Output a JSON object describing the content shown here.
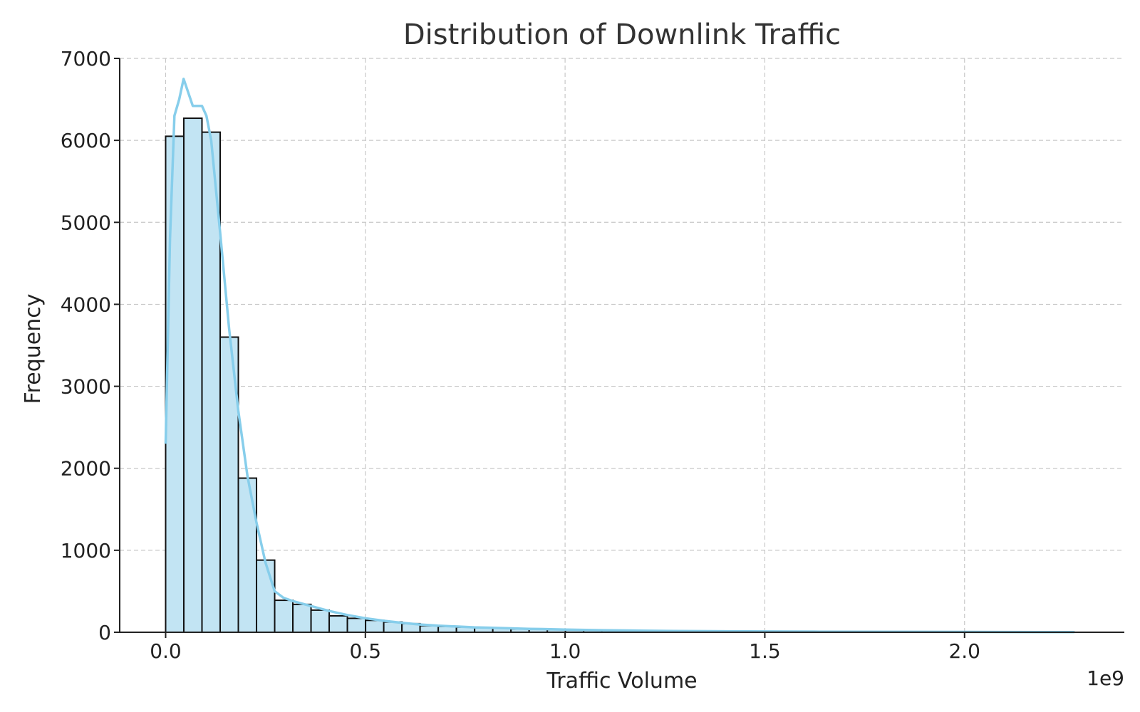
{
  "chart_data": {
    "type": "bar",
    "title": "Distribution of Downlink Traffic",
    "xlabel": "Traffic Volume",
    "ylabel": "Frequency",
    "x_offset_label": "1e9",
    "xlim": [
      -115000000.0,
      2400000000.0
    ],
    "ylim": [
      0,
      7000
    ],
    "xticks": [
      0.0,
      0.5,
      1.0,
      1.5,
      2.0
    ],
    "xtick_labels": [
      "0.0",
      "0.5",
      "1.0",
      "1.5",
      "2.0"
    ],
    "yticks": [
      0,
      1000,
      2000,
      3000,
      4000,
      5000,
      6000,
      7000
    ],
    "ytick_labels": [
      "0",
      "1000",
      "2000",
      "3000",
      "4000",
      "5000",
      "6000",
      "7000"
    ],
    "grid": true,
    "bin_start": 0,
    "bin_width": 45500000,
    "values": [
      6050,
      6270,
      6100,
      3600,
      1880,
      880,
      390,
      340,
      270,
      200,
      170,
      145,
      125,
      105,
      80,
      70,
      62,
      55,
      48,
      40,
      36,
      32,
      28,
      25,
      22,
      20,
      18,
      16,
      14,
      12,
      11,
      10,
      9,
      8,
      7,
      6,
      5,
      5,
      4,
      4,
      3,
      3,
      3,
      2,
      2,
      2,
      2,
      2,
      1,
      1
    ],
    "kde": {
      "x": [
        0.0,
        11000000.0,
        22000000.0,
        34000000.0,
        45000000.0,
        68000000.0,
        80000000.0,
        91000000.0,
        102000000.0,
        114000000.0,
        136000000.0,
        159000000.0,
        182000000.0,
        205000000.0,
        227000000.0,
        250000000.0,
        273000000.0,
        295000000.0,
        318000000.0,
        341000000.0,
        364000000.0,
        409000000.0,
        455000000.0,
        500000000.0,
        546000000.0,
        591000000.0,
        637000000.0,
        682000000.0,
        728000000.0,
        773000000.0,
        819000000.0,
        864000000.0,
        910000000.0,
        955000000.0,
        1001000000.0,
        1092000000.0,
        1183000000.0,
        1274000000.0,
        1365000000.0,
        1456000000.0,
        1547000000.0,
        1638000000.0,
        1820000000.0,
        2002000000.0,
        2184000000.0,
        2275000000.0
      ],
      "y": [
        2300,
        4800,
        6300,
        6500,
        6750,
        6420,
        6420,
        6420,
        6300,
        6000,
        4900,
        3700,
        2700,
        1900,
        1350,
        850,
        500,
        420,
        380,
        350,
        320,
        260,
        210,
        170,
        140,
        115,
        95,
        80,
        70,
        60,
        55,
        48,
        42,
        38,
        32,
        25,
        20,
        16,
        13,
        11,
        9,
        7,
        5,
        4,
        3,
        2
      ]
    },
    "colors": {
      "bar_fill": "#c2e4f3",
      "bar_edge": "#111111",
      "kde_line": "#87ceeb"
    }
  }
}
